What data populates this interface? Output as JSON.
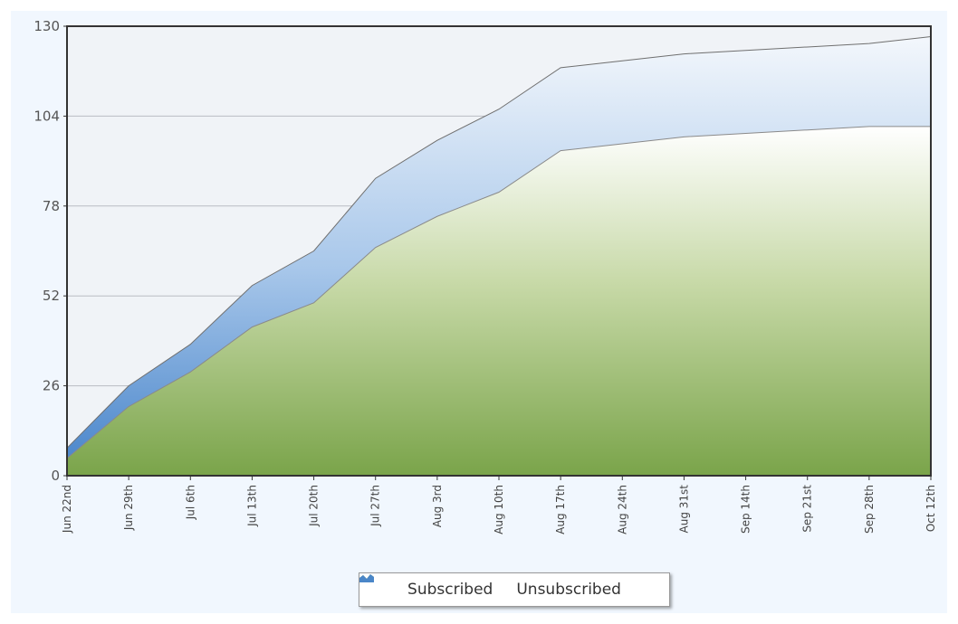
{
  "chart_data": {
    "type": "area",
    "stacked": true,
    "x": [
      "Jun 22nd",
      "Jun 29th",
      "Jul 6th",
      "Jul 13th",
      "Jul 20th",
      "Jul 27th",
      "Aug 3rd",
      "Aug 10th",
      "Aug 17th",
      "Aug 24th",
      "Aug 31st",
      "Sep 14th",
      "Sep 21st",
      "Sep 28th",
      "Oct 12th"
    ],
    "series": [
      {
        "name": "Subscribed",
        "color": "#7fa84a",
        "values": [
          5,
          20,
          30,
          43,
          50,
          66,
          75,
          82,
          94,
          96,
          98,
          99,
          100,
          101,
          101
        ]
      },
      {
        "name": "Unsubscribed",
        "color": "#4a86c8",
        "values": [
          3,
          6,
          8,
          12,
          15,
          20,
          22,
          24,
          24,
          24,
          24,
          24,
          24,
          24,
          26
        ]
      }
    ],
    "ylim": [
      0,
      130
    ],
    "yticks": [
      0,
      26,
      52,
      78,
      104,
      130
    ],
    "grid": true,
    "legend_position": "bottom-center"
  }
}
